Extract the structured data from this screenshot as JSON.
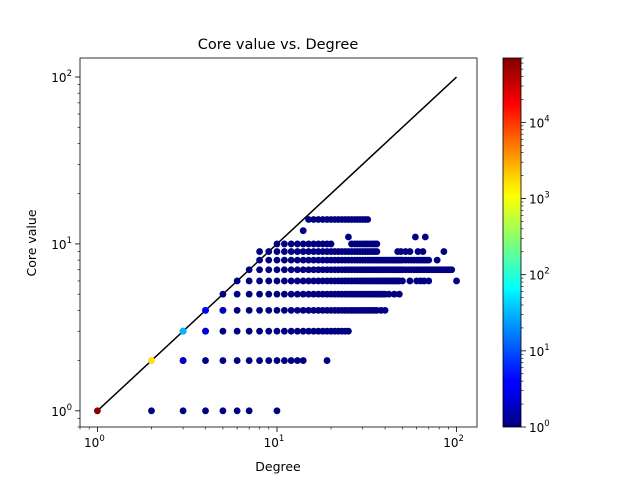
{
  "chart_data": {
    "type": "scatter",
    "title": "Core value vs. Degree",
    "xlabel": "Degree",
    "ylabel": "Core value",
    "xscale": "log",
    "yscale": "log",
    "xlim": [
      0.8,
      130
    ],
    "ylim": [
      0.8,
      130
    ],
    "x_ticks": [
      {
        "value": 1,
        "base": "10",
        "exp": "0"
      },
      {
        "value": 10,
        "base": "10",
        "exp": "1"
      },
      {
        "value": 100,
        "base": "10",
        "exp": "2"
      }
    ],
    "y_ticks": [
      {
        "value": 1,
        "base": "10",
        "exp": "0"
      },
      {
        "value": 10,
        "base": "10",
        "exp": "1"
      },
      {
        "value": 100,
        "base": "10",
        "exp": "2"
      }
    ],
    "reference_line": {
      "points": [
        [
          1,
          1
        ],
        [
          100,
          100
        ]
      ],
      "color": "#000000"
    },
    "colormap": "jet",
    "colorbar": {
      "scale": "log",
      "range": [
        1,
        70000
      ],
      "ticks": [
        {
          "value": 1,
          "base": "10",
          "exp": "0"
        },
        {
          "value": 10,
          "base": "10",
          "exp": "1"
        },
        {
          "value": 100,
          "base": "10",
          "exp": "2"
        },
        {
          "value": 1000,
          "base": "10",
          "exp": "3"
        },
        {
          "value": 10000,
          "base": "10",
          "exp": "4"
        }
      ]
    },
    "points": [
      {
        "x": 1,
        "y": 1,
        "count": 60000
      },
      {
        "x": 2,
        "y": 2,
        "count": 1500
      },
      {
        "x": 3,
        "y": 3,
        "count": 30
      },
      {
        "x": 3,
        "y": 2,
        "count": 2
      },
      {
        "x": 4,
        "y": 4,
        "count": 4
      },
      {
        "x": 4,
        "y": 3,
        "count": 3
      },
      {
        "x": 5,
        "y": 4,
        "count": 2
      },
      {
        "x": 2,
        "y": 1,
        "count": 1
      },
      {
        "x": 3,
        "y": 1,
        "count": 1
      },
      {
        "x": 4,
        "y": 1,
        "count": 1
      },
      {
        "x": 5,
        "y": 1,
        "count": 1
      },
      {
        "x": 6,
        "y": 1,
        "count": 1
      },
      {
        "x": 7,
        "y": 1,
        "count": 1
      },
      {
        "x": 10,
        "y": 1,
        "count": 1
      },
      {
        "x": 14,
        "y": 12,
        "count": 1
      },
      {
        "x": 18,
        "y": 10,
        "count": 1
      },
      {
        "x": 19,
        "y": 10,
        "count": 1
      },
      {
        "x": 20,
        "y": 10,
        "count": 1
      },
      {
        "x": 19,
        "y": 2,
        "count": 1
      },
      {
        "x": 8,
        "y": 9,
        "count": 1
      },
      {
        "x": 9,
        "y": 9,
        "count": 1
      },
      {
        "x": 25,
        "y": 11,
        "count": 1
      },
      {
        "x": 78,
        "y": 8,
        "count": 1
      },
      {
        "x": 85,
        "y": 9,
        "count": 1
      },
      {
        "x": 100,
        "y": 6,
        "count": 1
      },
      {
        "x": 42,
        "y": 5,
        "count": 1
      },
      {
        "x": 45,
        "y": 5,
        "count": 1
      },
      {
        "x": 48,
        "y": 5,
        "count": 1
      },
      {
        "x": 50,
        "y": 6,
        "count": 1
      },
      {
        "x": 55,
        "y": 6,
        "count": 1
      },
      {
        "x": 47,
        "y": 9,
        "count": 1
      },
      {
        "x": 49,
        "y": 9,
        "count": 1
      },
      {
        "x": 52,
        "y": 9,
        "count": 1
      },
      {
        "x": 55,
        "y": 9,
        "count": 1
      },
      {
        "x": 59,
        "y": 11,
        "count": 1
      },
      {
        "x": 67,
        "y": 11,
        "count": 1
      },
      {
        "x": 61,
        "y": 9,
        "count": 1
      },
      {
        "x": 65,
        "y": 9,
        "count": 1
      }
    ],
    "point_rows": [
      {
        "y": 2,
        "x": [
          3,
          4,
          5,
          6,
          7,
          8,
          9,
          10,
          11,
          12,
          13,
          14
        ]
      },
      {
        "y": 3,
        "x": [
          3,
          4,
          5,
          6,
          7,
          8,
          9,
          10,
          11,
          12,
          13,
          14,
          15,
          16,
          17,
          18,
          19,
          20,
          21,
          22,
          23,
          24,
          25
        ]
      },
      {
        "y": 4,
        "x": [
          4,
          5,
          6,
          7,
          8,
          9,
          10,
          11,
          12,
          13,
          14,
          15,
          16,
          17,
          18,
          19,
          20,
          21,
          22,
          23,
          24,
          25,
          26,
          27,
          28,
          29,
          30,
          31,
          32,
          33,
          34,
          35,
          36,
          38,
          40
        ]
      },
      {
        "y": 5,
        "x": [
          5,
          6,
          7,
          8,
          9,
          10,
          11,
          12,
          13,
          14,
          15,
          16,
          17,
          18,
          19,
          20,
          21,
          22,
          23,
          24,
          25,
          26,
          27,
          28,
          29,
          30,
          31,
          32,
          33,
          34,
          35,
          36,
          37,
          38,
          39,
          40
        ]
      },
      {
        "y": 6,
        "x": [
          6,
          7,
          8,
          9,
          10,
          11,
          12,
          13,
          14,
          15,
          16,
          17,
          18,
          19,
          20,
          21,
          22,
          23,
          24,
          25,
          26,
          27,
          28,
          29,
          30,
          31,
          32,
          33,
          34,
          35,
          36,
          37,
          38,
          39,
          40,
          41,
          42,
          43,
          44,
          45,
          46,
          47,
          48,
          60,
          63,
          66,
          70
        ]
      },
      {
        "y": 7,
        "x": [
          7,
          8,
          9,
          10,
          11,
          12,
          13,
          14,
          15,
          16,
          17,
          18,
          19,
          20,
          21,
          22,
          23,
          24,
          25,
          26,
          27,
          28,
          29,
          30,
          31,
          32,
          33,
          34,
          35,
          36,
          37,
          38,
          39,
          40,
          41,
          42,
          43,
          44,
          45,
          46,
          47,
          48,
          49,
          50,
          52,
          54,
          56,
          58,
          60,
          62,
          64,
          66,
          68,
          70,
          72,
          74,
          76,
          78,
          80,
          82,
          84,
          86,
          88,
          90,
          92,
          94
        ]
      },
      {
        "y": 8,
        "x": [
          8,
          9,
          10,
          11,
          12,
          13,
          14,
          15,
          16,
          17,
          18,
          19,
          20,
          21,
          22,
          23,
          24,
          25,
          26,
          27,
          28,
          29,
          30,
          31,
          32,
          33,
          34,
          35,
          36,
          37,
          38,
          39,
          40,
          41,
          42,
          43,
          44,
          45,
          46,
          47,
          48,
          49,
          50,
          52,
          54,
          56,
          58,
          60,
          62,
          64,
          66,
          68,
          70
        ]
      },
      {
        "y": 9,
        "x": [
          10,
          11,
          12,
          13,
          14,
          15,
          16,
          17,
          18,
          19,
          20,
          21,
          22,
          23,
          24,
          25,
          26,
          27,
          28,
          29,
          30,
          31,
          32,
          33,
          34,
          35,
          36
        ]
      },
      {
        "y": 10,
        "x": [
          10,
          11,
          12,
          13,
          14,
          15,
          16,
          17,
          26,
          27,
          28,
          29,
          30,
          31,
          32,
          33,
          34,
          35,
          36
        ]
      },
      {
        "y": 14,
        "x": [
          15,
          16,
          17,
          18,
          19,
          20,
          21,
          22,
          23,
          24,
          25,
          26,
          27,
          28,
          29,
          30,
          31,
          32
        ]
      }
    ]
  }
}
